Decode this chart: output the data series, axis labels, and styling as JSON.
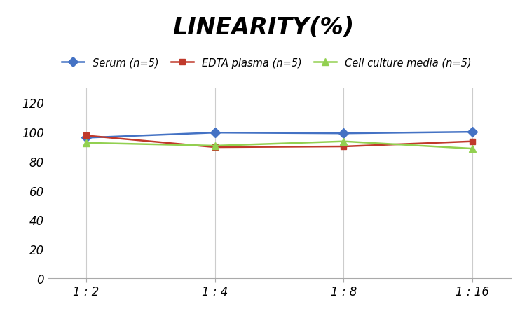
{
  "title": "LINEARITY(%)",
  "x_labels": [
    "1 : 2",
    "1 : 4",
    "1 : 8",
    "1 : 16"
  ],
  "x_values": [
    0,
    1,
    2,
    3
  ],
  "series": [
    {
      "label": "Serum (n=5)",
      "values": [
        96,
        99.5,
        99,
        100
      ],
      "color": "#4472C4",
      "marker": "D",
      "marker_size": 7,
      "linewidth": 1.8
    },
    {
      "label": "EDTA plasma (n=5)",
      "values": [
        97.5,
        89.5,
        90,
        93.5
      ],
      "color": "#C0392B",
      "marker": "s",
      "marker_size": 6,
      "linewidth": 1.8
    },
    {
      "label": "Cell culture media (n=5)",
      "values": [
        92.5,
        90.5,
        93.5,
        88.5
      ],
      "color": "#92D050",
      "marker": "^",
      "marker_size": 7,
      "linewidth": 1.8
    }
  ],
  "ylim": [
    0,
    130
  ],
  "yticks": [
    0,
    20,
    40,
    60,
    80,
    100,
    120
  ],
  "grid_color": "#CCCCCC",
  "background_color": "#FFFFFF",
  "title_fontsize": 24,
  "title_fontstyle": "italic",
  "title_fontweight": "bold",
  "legend_fontsize": 10.5,
  "tick_fontsize": 12,
  "figsize": [
    7.52,
    4.52
  ],
  "dpi": 100
}
